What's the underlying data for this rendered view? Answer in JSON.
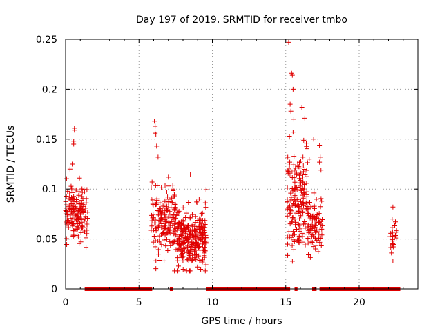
{
  "chart_data": {
    "type": "scatter",
    "title": "Day 197 of 2019, SRMTID for receiver tmbo",
    "xlabel": "GPS time / hours",
    "ylabel": "SRMTID / TECUs",
    "xlim": [
      0,
      24
    ],
    "ylim": [
      0,
      0.25
    ],
    "x_ticks": [
      0,
      5,
      10,
      15,
      20
    ],
    "y_ticks": [
      0,
      0.05,
      0.1,
      0.15,
      0.2,
      0.25
    ],
    "y_tick_labels": [
      "0",
      "0.05",
      "0.1",
      "0.15",
      "0.2",
      "0.25"
    ],
    "grid": true,
    "marker": "+",
    "color": "#e00000",
    "zero_band": [
      [
        1.3,
        5.9
      ],
      [
        7.1,
        7.3
      ],
      [
        9.6,
        15.3
      ],
      [
        15.6,
        15.8
      ],
      [
        16.8,
        17.1
      ],
      [
        17.3,
        22.8
      ]
    ],
    "clusters": [
      {
        "x": [
          0.0,
          1.5
        ],
        "ymean": 0.075,
        "ysd": 0.013,
        "count": 170
      },
      {
        "x": [
          5.8,
          7.6
        ],
        "ymean": 0.07,
        "ysd": 0.018,
        "count": 170
      },
      {
        "x": [
          7.6,
          9.6
        ],
        "ymean": 0.05,
        "ysd": 0.014,
        "count": 280
      },
      {
        "x": [
          15.1,
          16.5
        ],
        "ymean": 0.09,
        "ysd": 0.025,
        "count": 180
      },
      {
        "x": [
          16.5,
          17.5
        ],
        "ymean": 0.065,
        "ysd": 0.014,
        "count": 90
      },
      {
        "x": [
          22.1,
          22.6
        ],
        "ymean": 0.05,
        "ysd": 0.01,
        "count": 22
      }
    ],
    "highlights": [
      {
        "x": 0.6,
        "y": 0.161
      },
      {
        "x": 0.6,
        "y": 0.159
      },
      {
        "x": 0.55,
        "y": 0.148
      },
      {
        "x": 0.55,
        "y": 0.145
      },
      {
        "x": 0.45,
        "y": 0.125
      },
      {
        "x": 0.3,
        "y": 0.12
      },
      {
        "x": 6.05,
        "y": 0.168
      },
      {
        "x": 6.1,
        "y": 0.163
      },
      {
        "x": 6.1,
        "y": 0.156
      },
      {
        "x": 6.15,
        "y": 0.155
      },
      {
        "x": 6.2,
        "y": 0.143
      },
      {
        "x": 6.3,
        "y": 0.132
      },
      {
        "x": 15.2,
        "y": 0.247
      },
      {
        "x": 15.4,
        "y": 0.216
      },
      {
        "x": 15.45,
        "y": 0.214
      },
      {
        "x": 15.5,
        "y": 0.2
      },
      {
        "x": 15.3,
        "y": 0.185
      },
      {
        "x": 15.35,
        "y": 0.178
      },
      {
        "x": 15.55,
        "y": 0.17
      },
      {
        "x": 15.5,
        "y": 0.157
      },
      {
        "x": 15.25,
        "y": 0.153
      },
      {
        "x": 16.1,
        "y": 0.182
      },
      {
        "x": 16.3,
        "y": 0.171
      },
      {
        "x": 16.4,
        "y": 0.146
      },
      {
        "x": 16.9,
        "y": 0.15
      },
      {
        "x": 17.3,
        "y": 0.144
      },
      {
        "x": 17.35,
        "y": 0.132
      },
      {
        "x": 17.3,
        "y": 0.127
      },
      {
        "x": 17.4,
        "y": 0.119
      },
      {
        "x": 16.2,
        "y": 0.124
      },
      {
        "x": 22.3,
        "y": 0.082
      },
      {
        "x": 22.25,
        "y": 0.07
      },
      {
        "x": 22.2,
        "y": 0.036
      },
      {
        "x": 22.3,
        "y": 0.028
      },
      {
        "x": 16.6,
        "y": 0.13
      },
      {
        "x": 7.0,
        "y": 0.112
      },
      {
        "x": 8.5,
        "y": 0.115
      },
      {
        "x": 9.1,
        "y": 0.09
      }
    ]
  }
}
